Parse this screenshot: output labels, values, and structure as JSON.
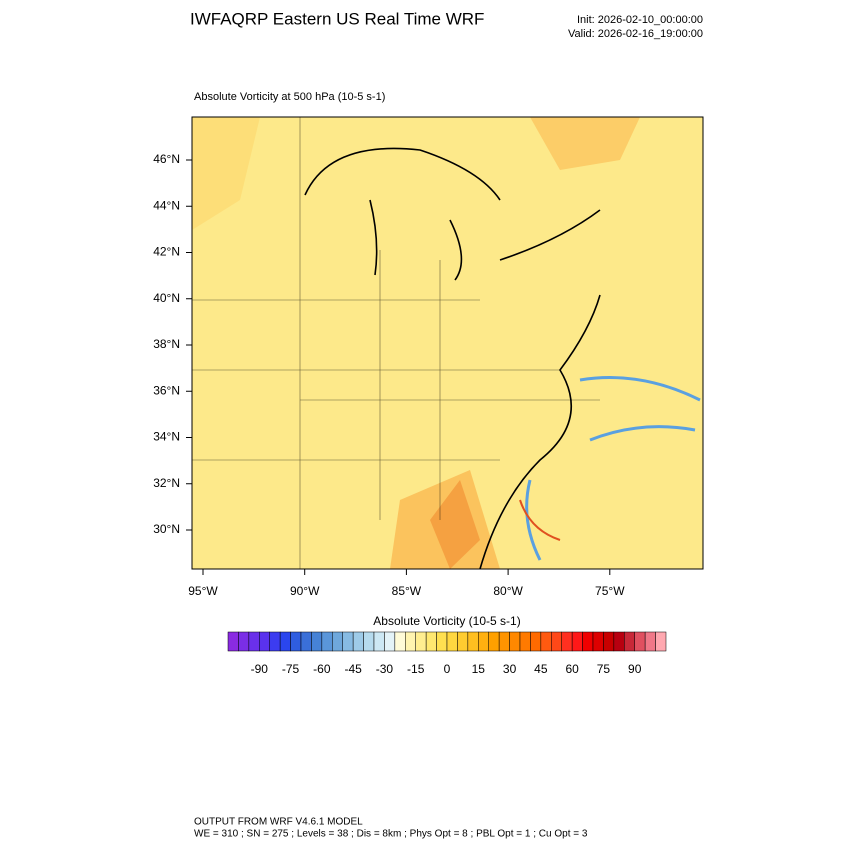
{
  "header": {
    "title": "IWFAQRP Eastern US Real Time WRF",
    "init": "Init: 2026-02-10_00:00:00",
    "valid": "Valid: 2026-02-16_19:00:00"
  },
  "map": {
    "subtitle": "Absolute Vorticity at 500 hPa   (10-5 s-1)",
    "lat_labels": [
      "46°N",
      "44°N",
      "42°N",
      "40°N",
      "38°N",
      "36°N",
      "34°N",
      "32°N",
      "30°N"
    ],
    "lon_labels": [
      "95°W",
      "90°W",
      "85°W",
      "80°W",
      "75°W"
    ]
  },
  "colorbar": {
    "title": "Absolute Vorticity  (10-5 s-1)",
    "labels": [
      "-90",
      "-75",
      "-60",
      "-45",
      "-30",
      "-15",
      "0",
      "15",
      "30",
      "45",
      "60",
      "75",
      "90"
    ],
    "colors": [
      "#8a2be2",
      "#7a2ee6",
      "#6a30ea",
      "#5a32ee",
      "#3c3cf0",
      "#2a46ee",
      "#2f5de0",
      "#3a6fd8",
      "#4682d6",
      "#5a96da",
      "#6fa8dc",
      "#87bbe3",
      "#9ecbe8",
      "#b6dbee",
      "#cde8f4",
      "#e4f3f8",
      "#fffbd8",
      "#fff4b0",
      "#ffee90",
      "#ffe870",
      "#ffe050",
      "#ffd740",
      "#ffcc30",
      "#ffbf20",
      "#ffb010",
      "#ffa000",
      "#ff9400",
      "#ff8800",
      "#ff7a00",
      "#ff6a00",
      "#ff5a10",
      "#ff4818",
      "#ff3020",
      "#ff1818",
      "#f00000",
      "#dd0000",
      "#c80000",
      "#b80010",
      "#c82838",
      "#e05060",
      "#f07888",
      "#ffa8b0"
    ]
  },
  "footer": {
    "line1": "OUTPUT FROM WRF V4.6.1 MODEL",
    "line2": "WE = 310 ; SN = 275 ; Levels = 38 ; Dis = 8km ; Phys Opt = 8 ; PBL Opt = 1 ; Cu Opt = 3"
  }
}
